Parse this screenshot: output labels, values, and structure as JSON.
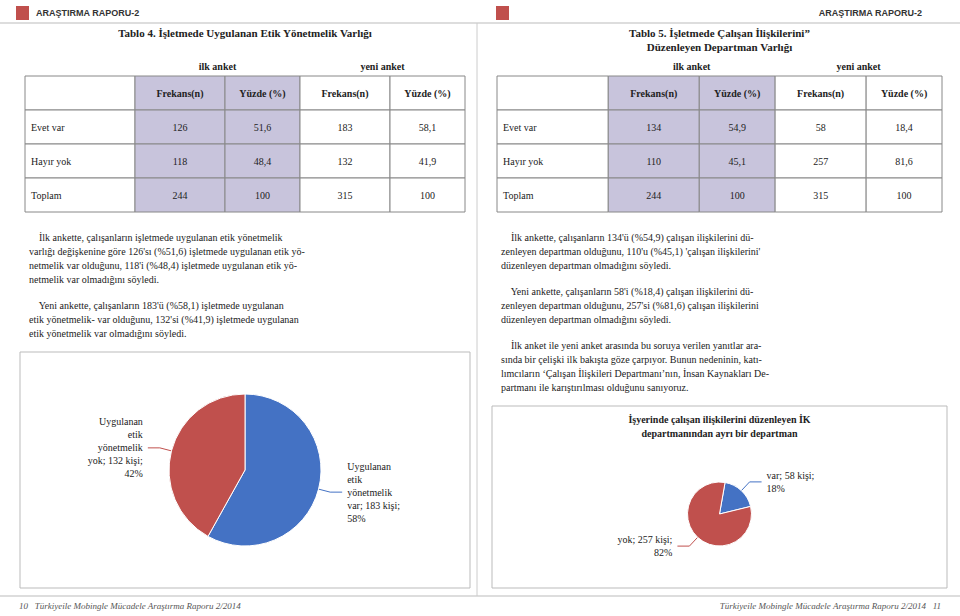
{
  "header": [
    "ARAŞTIRMA RAPORU-2",
    "ARAŞTIRMA RAPORU-2"
  ],
  "header_icon_color": "#C0504D",
  "footer": [
    "10   Türkiyeile Mobingle Mücadele Araştırma Raporu 2/2014",
    "Türkiyeile Mobingle Mücadele Araştırma Raporu 2/2014   11"
  ],
  "chart_data": [
    {
      "type": "table",
      "title": "Tablo 4. İşletmede Uygulanan Etik Yönetmelik Varlığı",
      "header_groups": [
        "ilk anket",
        "yeni anket"
      ],
      "columns": [
        "Frekans(n)",
        "Yüzde (%)",
        "Frekans(n)",
        "Yüzde (%)"
      ],
      "rows": [
        [
          "Evet var",
          "126",
          "51,6",
          "183",
          "58,1"
        ],
        [
          "Hayır yok",
          "118",
          "48,4",
          "132",
          "41,9"
        ],
        [
          "Toplam",
          "244",
          "100",
          "315",
          "100"
        ]
      ],
      "color": "#C8C4DC",
      "annotations": [
        "    İlk ankette, çalışanların işletmede uygulanan etik yönetmelik\nvarlığı değişkenine göre 126'sı (%51,6) işletmede uygulanan etik yö-\nnetmelik var olduğunu, 118'i (%48,4) işletmede uygulanan etik yö-\nnetmelik var olmadığını söyledi.",
        "    Yeni ankette, çalışanların 183'ü (%58,1) işletmede uygulanan\netik yönetmelik- var olduğunu, 132'si (%41,9) işletmede uygulanan\netik yönetmelik var olmadığını söyledi."
      ]
    },
    {
      "type": "pie",
      "values": [
        183,
        132
      ],
      "value_labels": [
        "Uygulanan\netik\nyönetmelik\nvar; 183 kişi;\n58%",
        "Uygulanan\netik\nyönetmelik\nyok; 132 kişi;\n42%"
      ],
      "colors": [
        "#4472C4",
        "#C0504D"
      ],
      "data_labels": true
    },
    {
      "type": "table",
      "title": "Tablo 5. İşletmede Çalışan İlişkilerini”\nDüzenleyen Departman Varlığı",
      "header_groups": [
        "ilk anket",
        "yeni anket"
      ],
      "columns": [
        "Frekans(n)",
        "Yüzde (%)",
        "Frekans(n)",
        "Yüzde (%)"
      ],
      "rows": [
        [
          "Evet var",
          "134",
          "54,9",
          "58",
          "18,4"
        ],
        [
          "Hayır yok",
          "110",
          "45,1",
          "257",
          "81,6"
        ],
        [
          "Toplam",
          "244",
          "100",
          "315",
          "100"
        ]
      ],
      "color": "#C8C4DC",
      "annotations": [
        "    İlk ankette, çalışanların 134'ü (%54,9) çalışan ilişkilerini dü-\nzenleyen departman olduğunu, 110'u (%45,1) 'çalışan ilişkilerini'\ndüzenleyen departman olmadığını söyledi.",
        "    Yeni ankette, çalışanların 58'i (%18,4) çalışan ilişkilerini dü-\nzenleyen departman olduğunu, 257'si (%81,6) çalışan ilişkilerini\ndüzenleyen departman olmadığını söyledi.",
        "    İlk anket ile yeni anket arasında bu soruya verilen yanıtlar ara-\nsında bir çelişki ilk bakışta göze çarpıyor. Bunun nedeninin, katı-\nlımcıların ‘Çalışan İlişkileri Departmanı’nın, İnsan Kaynakları De-\npartmanı ile karıştırılması olduğunu sanıyoruz."
      ]
    },
    {
      "type": "pie",
      "title": "İşyerinde çalışan ilişkilerini düzenleyen İK\ndepartmanından ayrı bir departman",
      "values": [
        58,
        257
      ],
      "value_labels": [
        "var; 58 kişi;\n18%",
        "yok; 257 kişi;\n82%"
      ],
      "colors": [
        "#4472C4",
        "#C0504D"
      ],
      "data_labels": true
    }
  ]
}
